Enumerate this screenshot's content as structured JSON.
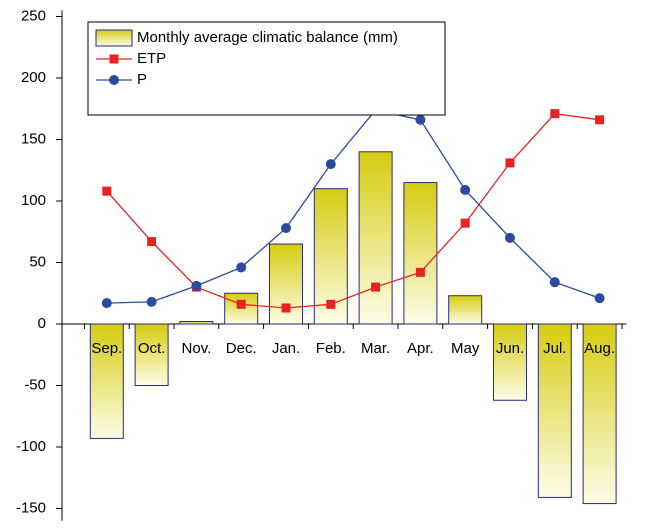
{
  "chart_data": {
    "type": "bar-line",
    "categories": [
      "Sep.",
      "Oct.",
      "Nov.",
      "Dec.",
      "Jan.",
      "Feb.",
      "Mar.",
      "Apr.",
      "May",
      "Jun.",
      "Jul.",
      "Aug."
    ],
    "series": [
      {
        "name": "Monthly average climatic balance (mm)",
        "type": "bar",
        "color": "#d6cc10",
        "values": [
          -93,
          -50,
          2,
          25,
          65,
          110,
          140,
          115,
          23,
          -62,
          -141,
          -146
        ]
      },
      {
        "name": "ETP",
        "type": "line",
        "marker": "square",
        "color": "#e8231f",
        "values": [
          108,
          67,
          30,
          16,
          13,
          16,
          30,
          42,
          82,
          131,
          171,
          166
        ]
      },
      {
        "name": "P",
        "type": "line",
        "marker": "circle",
        "color": "#2b4ba0",
        "values": [
          17,
          18,
          31,
          46,
          78,
          130,
          174,
          166,
          109,
          70,
          34,
          21
        ]
      }
    ],
    "ylim": [
      -160,
      255
    ],
    "yticks": [
      -150,
      -100,
      -50,
      0,
      50,
      100,
      150,
      200,
      250
    ]
  }
}
